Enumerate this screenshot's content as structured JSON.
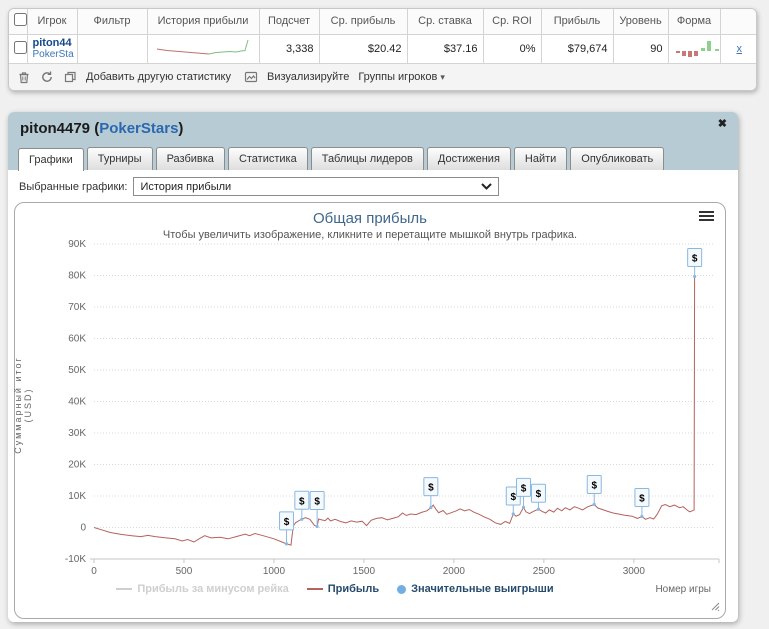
{
  "table": {
    "headers": [
      "Игрок",
      "Фильтр",
      "История прибыли",
      "Подсчет",
      "Ср. прибыль",
      "Ср. ставка",
      "Ср. ROI",
      "Прибыль",
      "Уровень",
      "Форма"
    ],
    "row": {
      "player": "piton44",
      "site": "PokerSta",
      "count": "3,338",
      "av_profit": "$20.42",
      "av_stake": "$37.16",
      "av_roi": "0%",
      "profit": "$79,674",
      "level": "90",
      "remove_label": "x",
      "sparkline": {
        "red_points": [
          [
            4,
            11
          ],
          [
            14,
            12.5
          ],
          [
            26,
            13.5
          ],
          [
            38,
            14.5
          ],
          [
            50,
            15.5
          ],
          [
            56,
            16
          ]
        ],
        "green_points": [
          [
            56,
            16
          ],
          [
            63,
            14.5
          ],
          [
            70,
            14
          ],
          [
            77,
            13.5
          ],
          [
            83,
            14
          ],
          [
            88,
            13
          ],
          [
            92,
            12.5
          ],
          [
            95,
            2
          ]
        ],
        "red_color": "#c0706c",
        "green_color": "#7fbf7f"
      },
      "form_bars": {
        "bars": [
          [
            2,
            -2
          ],
          [
            8,
            -5
          ],
          [
            14,
            -6
          ],
          [
            20,
            -5
          ],
          [
            27,
            3
          ],
          [
            33,
            10
          ],
          [
            41,
            2
          ]
        ],
        "up_color": "#8fd08f",
        "down_color": "#c97676"
      }
    },
    "toolbar": {
      "add_stat": "Добавить другую статистику",
      "visualize": "Визуализируйте",
      "groups": "Группы игроков",
      "caret": "▾"
    }
  },
  "panel": {
    "title_player": "piton4479",
    "paren_open": " (",
    "title_site": "PokerStars",
    "paren_close": ")",
    "close_glyph": "✖",
    "tabs": [
      {
        "label": "Графики"
      },
      {
        "label": "Турниры"
      },
      {
        "label": "Разбивка"
      },
      {
        "label": "Статистика"
      },
      {
        "label": "Таблицы лидеров"
      },
      {
        "label": "Достижения"
      },
      {
        "label": "Найти"
      },
      {
        "label": "Опубликовать"
      }
    ],
    "select_label": "Выбранные графики:",
    "select_value": "История прибыли"
  },
  "chart_data": {
    "type": "line",
    "title": "Общая прибыль",
    "subtitle": "Чтобы увеличить изображение, кликните и перетащите мышкой внутрь графика.",
    "ylabel": "Суммарный итог (USD)",
    "xlabel": "Номер игры",
    "xlim": [
      0,
      3440
    ],
    "ylim": [
      -10000,
      90000
    ],
    "x_ticks": [
      0,
      500,
      1000,
      1500,
      2000,
      2500,
      3000
    ],
    "y_ticks": [
      -10000,
      0,
      10000,
      20000,
      30000,
      40000,
      50000,
      60000,
      70000,
      80000,
      90000
    ],
    "y_tick_labels": [
      "-10K",
      "0",
      "10K",
      "20K",
      "30K",
      "40K",
      "50K",
      "60K",
      "70K",
      "80K",
      "90K"
    ],
    "grid": "dotted horizontal",
    "legend_position": "bottom-center",
    "legend": [
      {
        "label": "Прибыль за минусом рейка",
        "type": "line",
        "color": "#cfcfcf",
        "text_color": "#cfcfcf",
        "enabled": false
      },
      {
        "label": "Прибыль",
        "type": "line",
        "color": "#b4625e",
        "text_color": "#274b6d",
        "enabled": true
      },
      {
        "label": "Значительные выигрыши",
        "type": "dot",
        "color": "#71aee3",
        "text_color": "#274b6d",
        "enabled": true
      }
    ],
    "series": [
      {
        "name": "Прибыль",
        "color": "#b4625e",
        "points": [
          [
            0,
            0
          ],
          [
            40,
            -700
          ],
          [
            90,
            -1600
          ],
          [
            150,
            -2200
          ],
          [
            210,
            -2600
          ],
          [
            260,
            -2900
          ],
          [
            300,
            -2500
          ],
          [
            340,
            -2900
          ],
          [
            400,
            -3300
          ],
          [
            450,
            -3600
          ],
          [
            490,
            -4300
          ],
          [
            520,
            -3800
          ],
          [
            555,
            -4600
          ],
          [
            590,
            -3400
          ],
          [
            615,
            -2600
          ],
          [
            650,
            -3300
          ],
          [
            700,
            -3100
          ],
          [
            745,
            -3600
          ],
          [
            790,
            -2900
          ],
          [
            840,
            -2100
          ],
          [
            865,
            -2600
          ],
          [
            895,
            -1900
          ],
          [
            940,
            -2600
          ],
          [
            1000,
            -3600
          ],
          [
            1045,
            -4600
          ],
          [
            1070,
            -5200
          ],
          [
            1095,
            -5600
          ],
          [
            1100,
            -3000
          ],
          [
            1108,
            500
          ],
          [
            1120,
            1500
          ],
          [
            1140,
            2200
          ],
          [
            1155,
            2600
          ],
          [
            1175,
            3100
          ],
          [
            1200,
            2600
          ],
          [
            1225,
            700
          ],
          [
            1240,
            300
          ],
          [
            1248,
            2700
          ],
          [
            1265,
            2400
          ],
          [
            1285,
            2200
          ],
          [
            1300,
            3000
          ],
          [
            1315,
            2100
          ],
          [
            1340,
            2600
          ],
          [
            1370,
            1900
          ],
          [
            1400,
            1500
          ],
          [
            1430,
            2100
          ],
          [
            1460,
            1700
          ],
          [
            1490,
            2000
          ],
          [
            1515,
            600
          ],
          [
            1540,
            2300
          ],
          [
            1570,
            2900
          ],
          [
            1600,
            3100
          ],
          [
            1630,
            2400
          ],
          [
            1660,
            2900
          ],
          [
            1690,
            3400
          ],
          [
            1715,
            4600
          ],
          [
            1735,
            3800
          ],
          [
            1760,
            4300
          ],
          [
            1790,
            4100
          ],
          [
            1820,
            4800
          ],
          [
            1850,
            5300
          ],
          [
            1872,
            6300
          ],
          [
            1885,
            7100
          ],
          [
            1900,
            5800
          ],
          [
            1915,
            4700
          ],
          [
            1940,
            5400
          ],
          [
            1960,
            4200
          ],
          [
            1985,
            4700
          ],
          [
            2010,
            5200
          ],
          [
            2035,
            5900
          ],
          [
            2060,
            5300
          ],
          [
            2085,
            5700
          ],
          [
            2110,
            4900
          ],
          [
            2140,
            4200
          ],
          [
            2170,
            3300
          ],
          [
            2200,
            2600
          ],
          [
            2230,
            1500
          ],
          [
            2260,
            1000
          ],
          [
            2285,
            1900
          ],
          [
            2310,
            1300
          ],
          [
            2330,
            4300
          ],
          [
            2345,
            3600
          ],
          [
            2365,
            4100
          ],
          [
            2387,
            6400
          ],
          [
            2400,
            5000
          ],
          [
            2420,
            4400
          ],
          [
            2445,
            5200
          ],
          [
            2470,
            5800
          ],
          [
            2490,
            5100
          ],
          [
            2510,
            4600
          ],
          [
            2530,
            5600
          ],
          [
            2555,
            4900
          ],
          [
            2575,
            6100
          ],
          [
            2600,
            5300
          ],
          [
            2620,
            6300
          ],
          [
            2645,
            5600
          ],
          [
            2670,
            6600
          ],
          [
            2695,
            6100
          ],
          [
            2715,
            5600
          ],
          [
            2745,
            6600
          ],
          [
            2780,
            7300
          ],
          [
            2800,
            6200
          ],
          [
            2825,
            5700
          ],
          [
            2855,
            5100
          ],
          [
            2885,
            4600
          ],
          [
            2915,
            4300
          ],
          [
            2950,
            3900
          ],
          [
            2990,
            3600
          ],
          [
            3020,
            2900
          ],
          [
            3045,
            3500
          ],
          [
            3065,
            2600
          ],
          [
            3090,
            3100
          ],
          [
            3110,
            2700
          ],
          [
            3130,
            4200
          ],
          [
            3155,
            6900
          ],
          [
            3175,
            7300
          ],
          [
            3200,
            6600
          ],
          [
            3225,
            7100
          ],
          [
            3255,
            6300
          ],
          [
            3275,
            6600
          ],
          [
            3295,
            5600
          ],
          [
            3310,
            5000
          ],
          [
            3325,
            5300
          ],
          [
            3335,
            5600
          ],
          [
            3338,
            79674
          ]
        ]
      }
    ],
    "flags": {
      "label": "$",
      "border_color": "#8ab8e0",
      "fill_color": "#f4f9fd",
      "points": [
        {
          "x": 1070,
          "y": -5200,
          "stem": 14
        },
        {
          "x": 1155,
          "y": 2600,
          "stem": 10
        },
        {
          "x": 1240,
          "y": 300,
          "stem": 17
        },
        {
          "x": 1872,
          "y": 6300,
          "stem": 12
        },
        {
          "x": 2330,
          "y": 4300,
          "stem": 9
        },
        {
          "x": 2387,
          "y": 6400,
          "stem": 11
        },
        {
          "x": 2470,
          "y": 5800,
          "stem": 7
        },
        {
          "x": 2780,
          "y": 7300,
          "stem": 11
        },
        {
          "x": 3045,
          "y": 3500,
          "stem": 10
        },
        {
          "x": 3338,
          "y": 79674,
          "stem": 10
        }
      ]
    }
  }
}
